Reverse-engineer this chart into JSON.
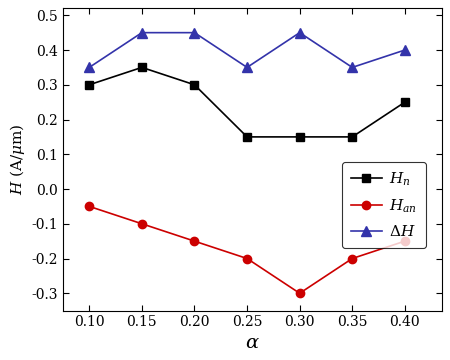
{
  "alpha": [
    0.1,
    0.15,
    0.2,
    0.25,
    0.3,
    0.35,
    0.4
  ],
  "Hn": [
    0.3,
    0.35,
    0.3,
    0.15,
    0.15,
    0.15,
    0.25
  ],
  "Han": [
    -0.05,
    -0.1,
    -0.15,
    -0.2,
    -0.3,
    -0.2,
    -0.15
  ],
  "DeltaH": [
    0.35,
    0.45,
    0.45,
    0.35,
    0.45,
    0.35,
    0.4
  ],
  "Hn_color": "#000000",
  "Han_color": "#cc0000",
  "DeltaH_color": "#3333aa",
  "xlabel_text": "$\\alpha$",
  "ylabel_text": "$H$ (A/$\\mu$m)",
  "ylim": [
    -0.35,
    0.52
  ],
  "xlim": [
    0.075,
    0.435
  ],
  "yticks": [
    -0.3,
    -0.2,
    -0.1,
    0.0,
    0.1,
    0.2,
    0.3,
    0.4,
    0.5
  ],
  "xticks": [
    0.1,
    0.15,
    0.2,
    0.25,
    0.3,
    0.35,
    0.4
  ],
  "legend_labels": [
    "$H_n$",
    "$H_{an}$",
    "$\\Delta H$"
  ],
  "fig_width": 4.5,
  "fig_height": 3.6
}
